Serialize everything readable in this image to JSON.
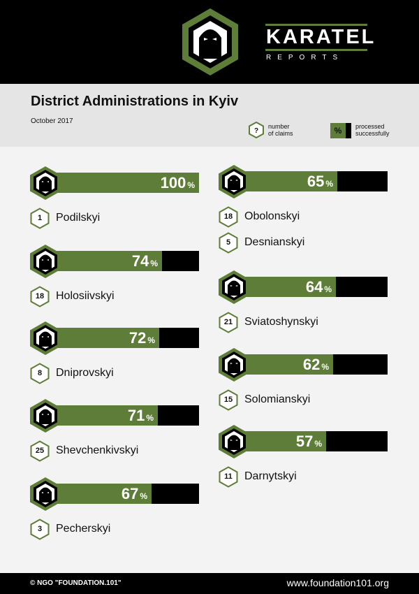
{
  "brand": {
    "title": "KARATEL",
    "subtitle": "REPORTS"
  },
  "page": {
    "title": "District Administrations in Kyiv",
    "date": "October 2017"
  },
  "legend": {
    "claims_symbol": "?",
    "claims_label_1": "number",
    "claims_label_2": "of claims",
    "percent_symbol": "%",
    "processed_label_1": "processed",
    "processed_label_2": "successfully"
  },
  "colors": {
    "accent_green": "#5d7d38",
    "black": "#000000",
    "background": "#f3f3f3",
    "band": "#e5e5e5"
  },
  "chart_data": {
    "type": "bar",
    "title": "District Administrations in Kyiv",
    "subtitle": "October 2017",
    "value_unit": "%",
    "ylim": [
      0,
      100
    ],
    "series": [
      {
        "name": "processed successfully",
        "values": [
          100,
          74,
          72,
          71,
          67,
          65,
          null,
          64,
          62,
          57
        ]
      },
      {
        "name": "number of claims",
        "values": [
          1,
          18,
          8,
          25,
          3,
          18,
          5,
          21,
          15,
          11
        ]
      }
    ],
    "categories": [
      "Podilskyi",
      "Holosiivskyi",
      "Dniprovskyi",
      "Shevchenkivskyi",
      "Pecherskyi",
      "Obolonskyi",
      "Desnianskyi",
      "Sviatoshynskyi",
      "Solomianskyi",
      "Darnytskyi"
    ],
    "bars_by_column": {
      "left": [
        {
          "percent": 100,
          "claims": 1,
          "district": "Podilskyi"
        },
        {
          "percent": 74,
          "claims": 18,
          "district": "Holosiivskyi"
        },
        {
          "percent": 72,
          "claims": 8,
          "district": "Dniprovskyi"
        },
        {
          "percent": 71,
          "claims": 25,
          "district": "Shevchenkivskyi"
        },
        {
          "percent": 67,
          "claims": 3,
          "district": "Pecherskyi"
        }
      ],
      "right": [
        {
          "percent": 65,
          "claims": 18,
          "district": "Obolonskyi",
          "also": {
            "claims": 5,
            "district": "Desnianskyi"
          }
        },
        {
          "percent": 64,
          "claims": 21,
          "district": "Sviatoshynskyi"
        },
        {
          "percent": 62,
          "claims": 15,
          "district": "Solomianskyi"
        },
        {
          "percent": 57,
          "claims": 11,
          "district": "Darnytskyi"
        }
      ]
    }
  },
  "footer": {
    "copyright": "© NGO \"FOUNDATION.101\"",
    "website": "www.foundation101.org"
  }
}
